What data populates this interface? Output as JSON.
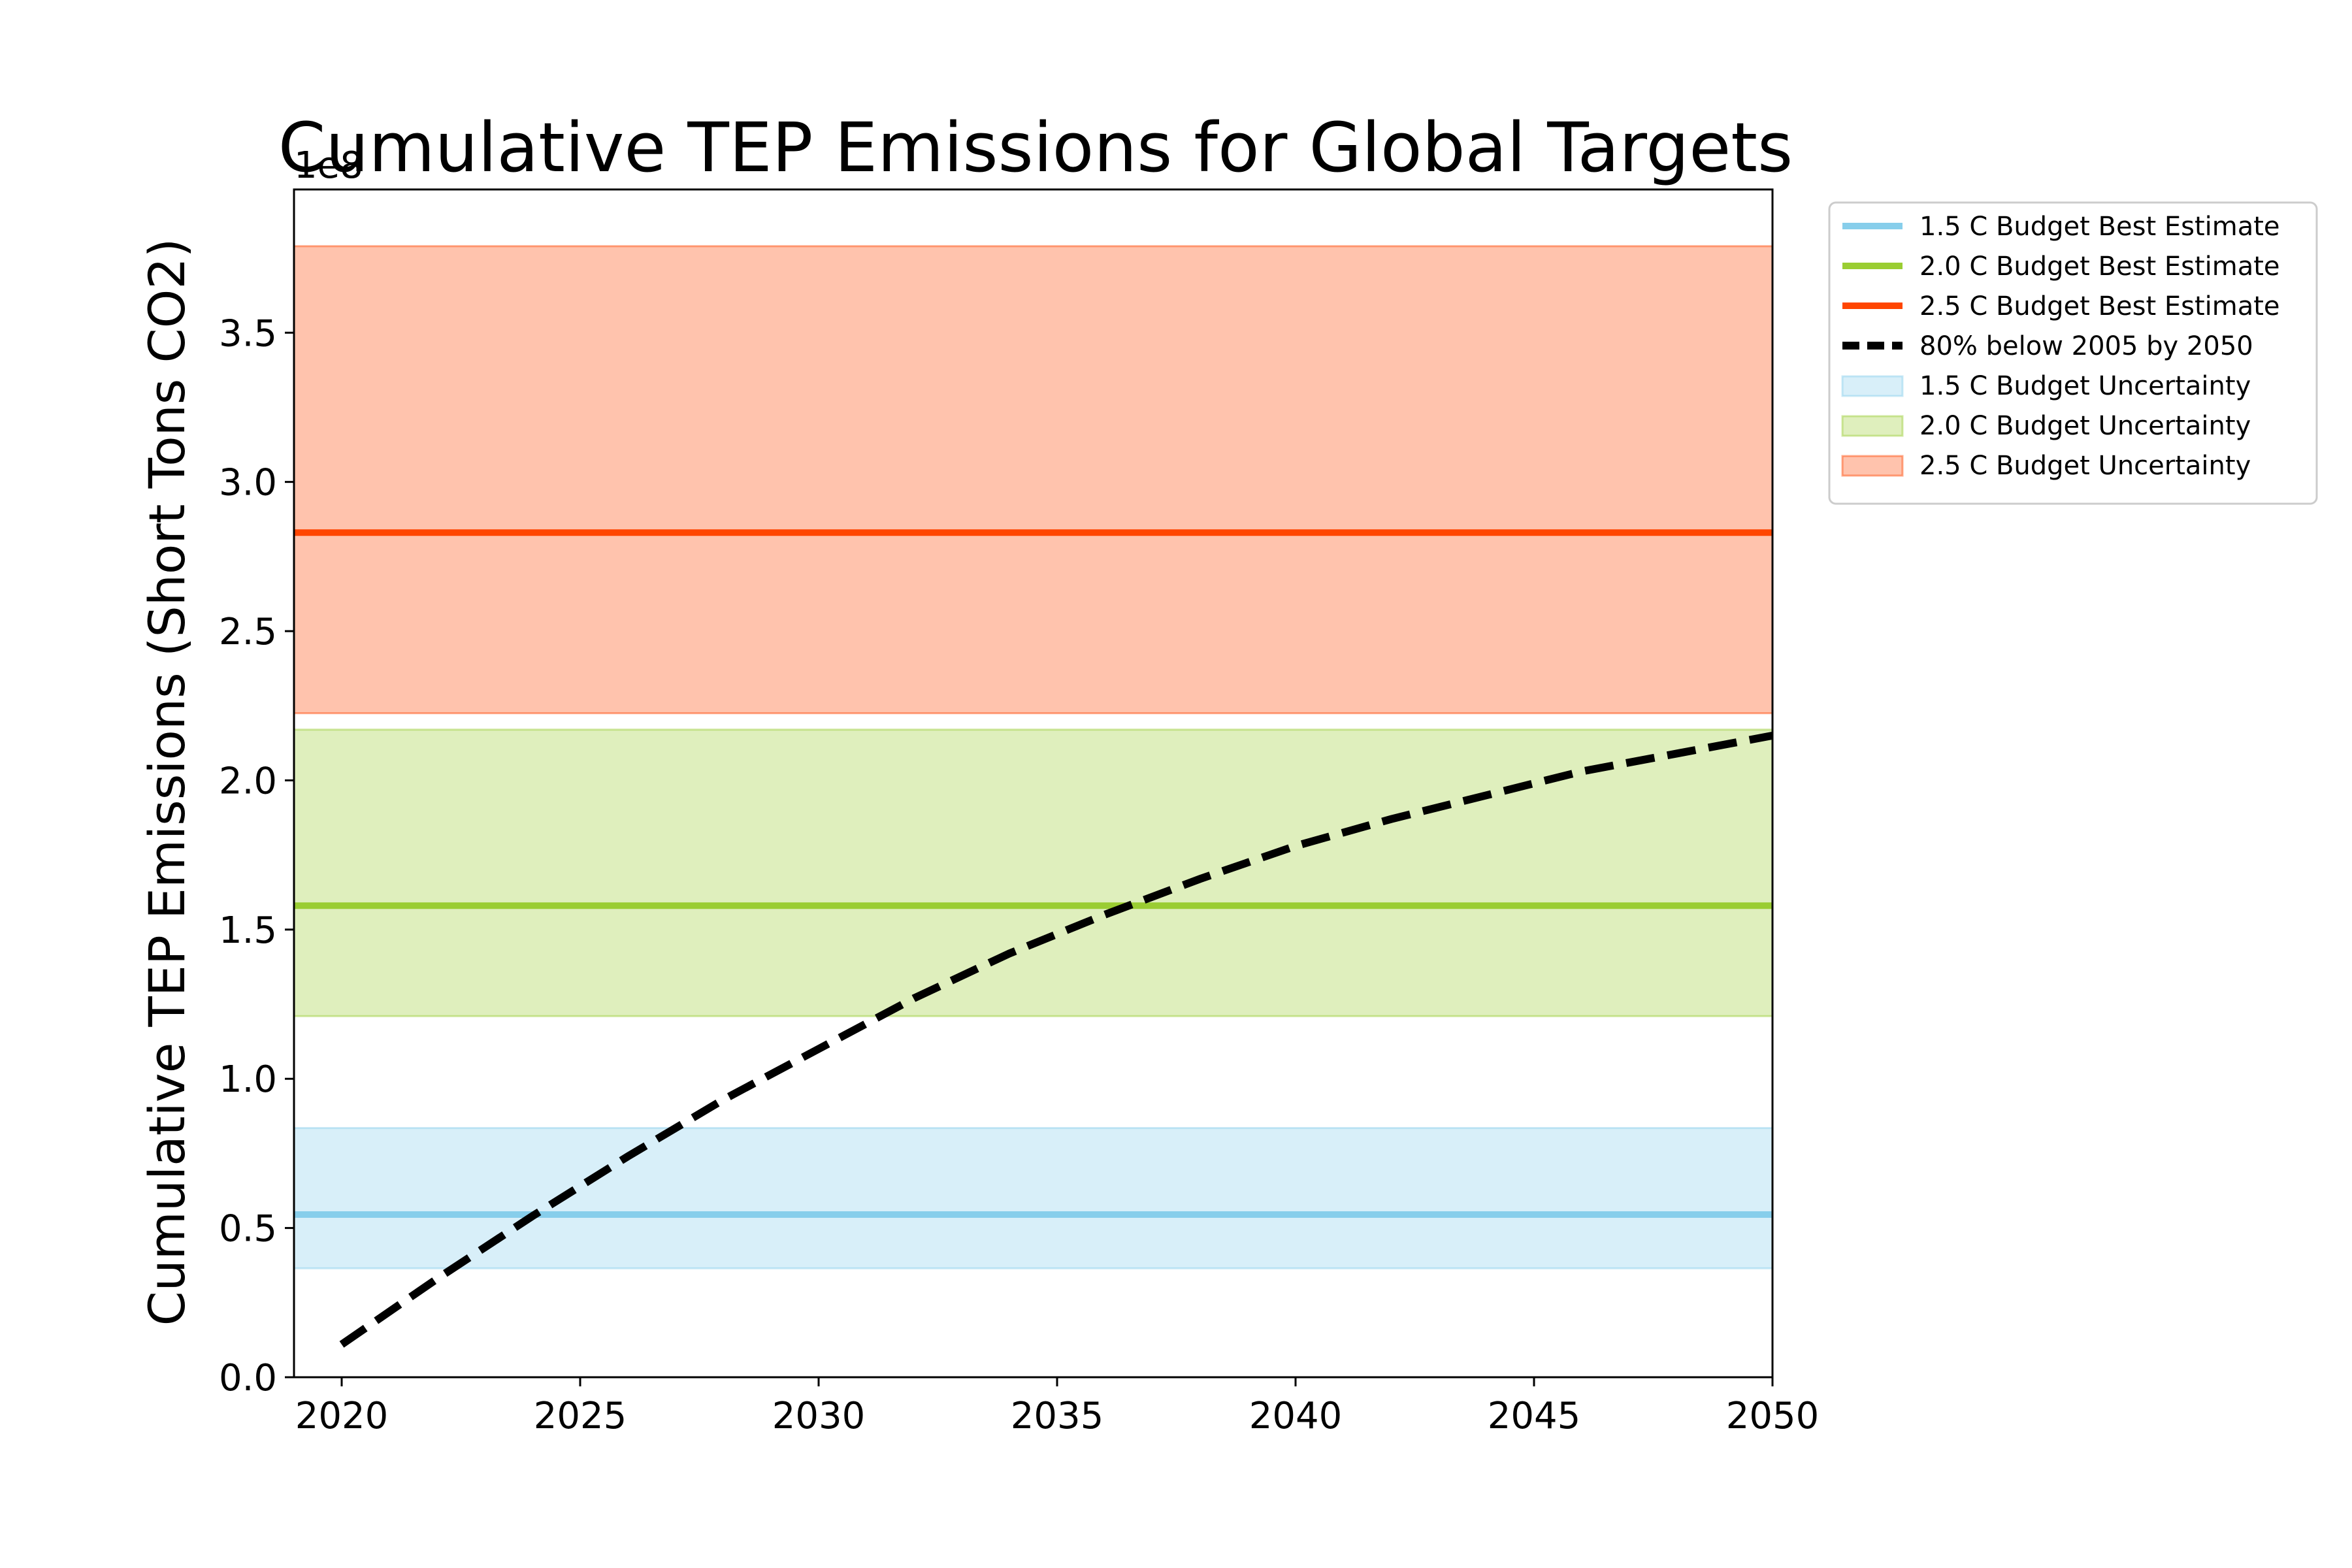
{
  "chart_data": {
    "type": "line",
    "title": "Cumulative TEP Emissions for Global Targets",
    "xlabel": "",
    "ylabel": "Cumulative TEP Emissions (Short Tons CO2)",
    "y_offset_label": "1e8",
    "y_scale": 100000000,
    "xlim": [
      2019,
      2050
    ],
    "ylim": [
      0,
      3.98
    ],
    "xticks": [
      2020,
      2025,
      2030,
      2035,
      2040,
      2045,
      2050
    ],
    "yticks": [
      0.0,
      0.5,
      1.0,
      1.5,
      2.0,
      2.5,
      3.0,
      3.5
    ],
    "ytick_labels": [
      "0.0",
      "0.5",
      "1.0",
      "1.5",
      "2.0",
      "2.5",
      "3.0",
      "3.5"
    ],
    "grid": false,
    "legend_placement": "outside upper right",
    "bands": [
      {
        "name": "1.5 C Budget Uncertainty",
        "low": 0.365,
        "high": 0.835,
        "color": "#87ceeb"
      },
      {
        "name": "2.0 C Budget Uncertainty",
        "low": 1.21,
        "high": 2.17,
        "color": "#9acd32"
      },
      {
        "name": "2.5 C Budget Uncertainty",
        "low": 2.225,
        "high": 3.79,
        "color": "#ff4500"
      }
    ],
    "hlines": [
      {
        "name": "1.5 C Budget Best Estimate",
        "value": 0.545,
        "color": "#87ceeb"
      },
      {
        "name": "2.0 C Budget Best Estimate",
        "value": 1.58,
        "color": "#9acd32"
      },
      {
        "name": "2.5 C Budget Best Estimate",
        "value": 2.83,
        "color": "#ff4500"
      }
    ],
    "series": [
      {
        "name": "80% below 2005 by 2050",
        "color": "#000000",
        "style": "dashed",
        "x": [
          2020,
          2022,
          2024,
          2026,
          2028,
          2030,
          2032,
          2034,
          2036,
          2038,
          2040,
          2042,
          2044,
          2046,
          2048,
          2050
        ],
        "y": [
          0.11,
          0.33,
          0.54,
          0.74,
          0.93,
          1.1,
          1.27,
          1.42,
          1.55,
          1.67,
          1.78,
          1.87,
          1.95,
          2.03,
          2.09,
          2.15
        ]
      }
    ],
    "legend": [
      {
        "label": "1.5 C Budget Best Estimate",
        "kind": "line",
        "color": "#87ceeb"
      },
      {
        "label": "2.0 C Budget Best Estimate",
        "kind": "line",
        "color": "#9acd32"
      },
      {
        "label": "2.5 C Budget Best Estimate",
        "kind": "line",
        "color": "#ff4500"
      },
      {
        "label": "80% below 2005 by 2050",
        "kind": "dashed",
        "color": "#000000"
      },
      {
        "label": "1.5 C Budget Uncertainty",
        "kind": "patch",
        "color": "#87ceeb"
      },
      {
        "label": "2.0 C Budget Uncertainty",
        "kind": "patch",
        "color": "#9acd32"
      },
      {
        "label": "2.5 C Budget Uncertainty",
        "kind": "patch",
        "color": "#ff4500"
      }
    ]
  }
}
